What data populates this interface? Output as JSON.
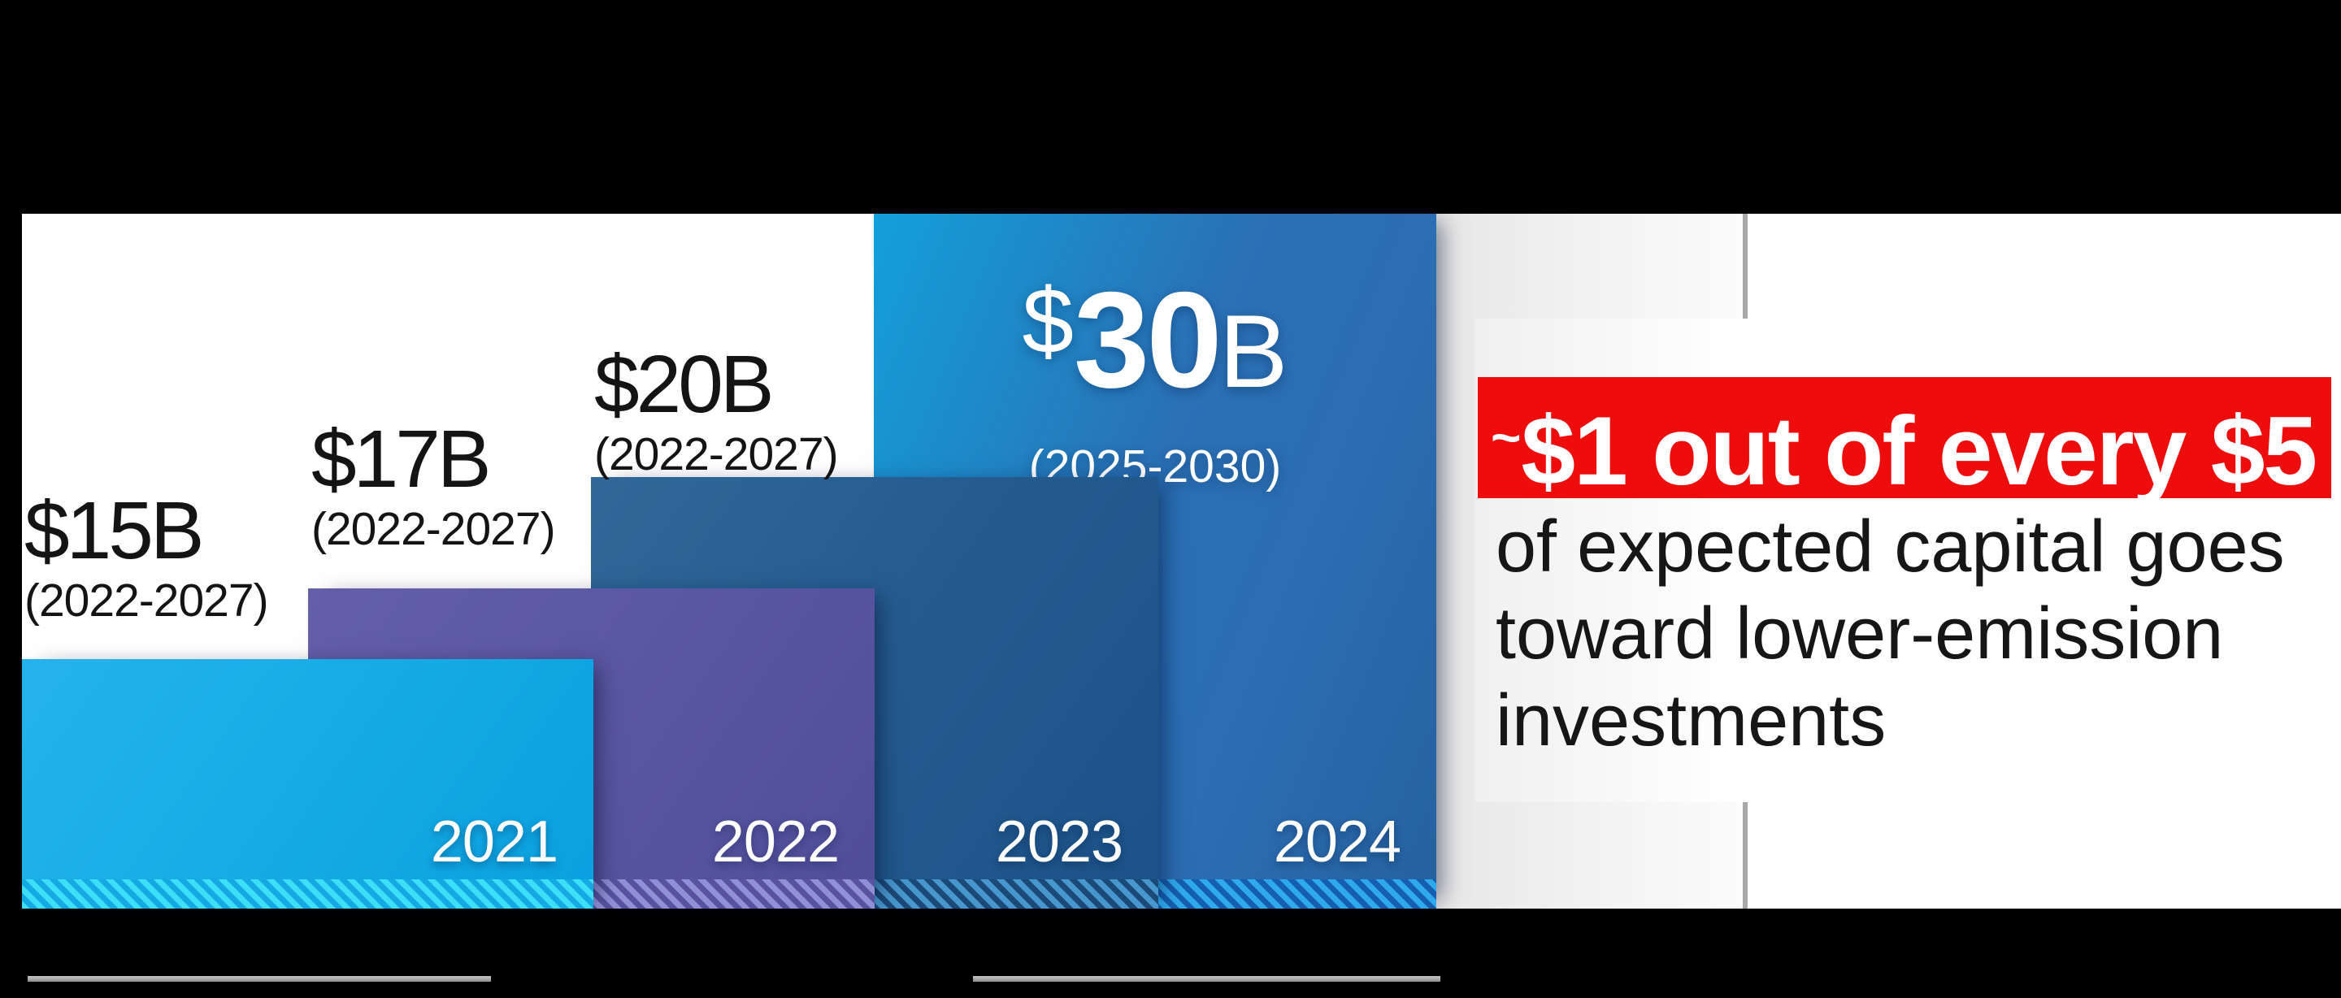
{
  "colors": {
    "background": "#000000",
    "canvas": "#ffffff",
    "accent_red": "#ee0c0c",
    "panel_gray": "#e7e7e7",
    "panel_border_gray": "#a8a8a8",
    "rule_gray": "#9e9e9e",
    "bar_2021": "#16abe5",
    "bar_2022": "#5a57a2",
    "bar_2023": "#245b8f",
    "bar_2024": "#2b6db1",
    "label_text": "#141414",
    "bar_label_text": "#ffffff"
  },
  "chart_data": {
    "type": "bar",
    "title": "",
    "unit": "USD billions",
    "categories": [
      "2021",
      "2022",
      "2023",
      "2024"
    ],
    "values": [
      15,
      17,
      20,
      30
    ],
    "legend": null,
    "grid": false,
    "notes": "Each successive annual bar is larger and layered behind the previous year; all bars share a hatched base band; amounts are announced investment plans with their period ranges.",
    "bars": [
      {
        "year": "2021",
        "amount": "$15B",
        "range": "(2022-2027)"
      },
      {
        "year": "2022",
        "amount": "$17B",
        "range": "(2022-2027)"
      },
      {
        "year": "2023",
        "amount": "$20B",
        "range": "(2022-2027)"
      },
      {
        "year": "2024",
        "amount_currency": "$",
        "amount_value": "30",
        "amount_unit": "B",
        "range": "(2025-2030)"
      }
    ]
  },
  "callout": {
    "approx_symbol": "~",
    "highlight": "$1 out of every $5",
    "lines": [
      "of expected capital goes",
      "toward lower-emission",
      "investments"
    ]
  }
}
